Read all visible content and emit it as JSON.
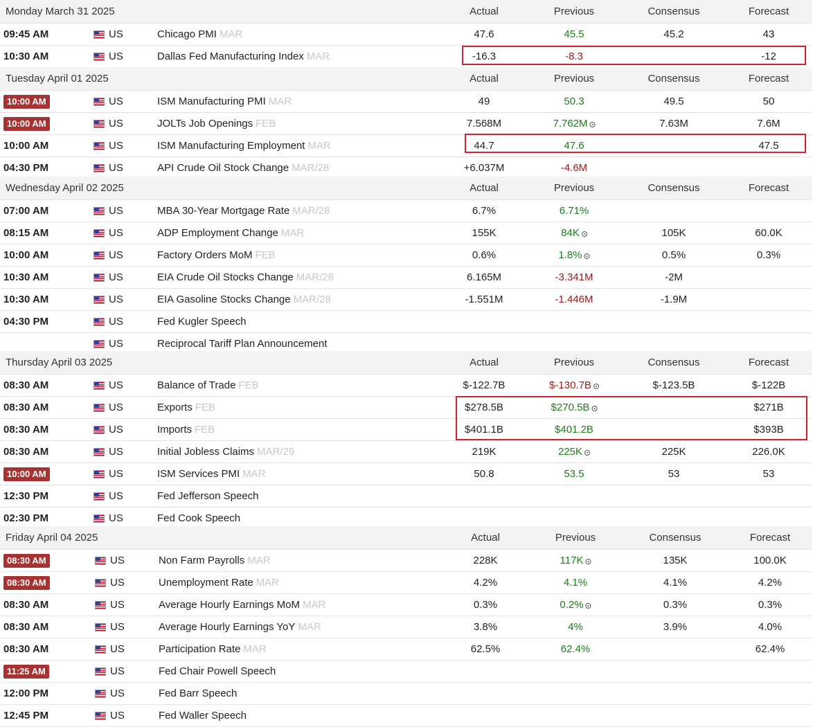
{
  "columns": {
    "actual": "Actual",
    "previous": "Previous",
    "consensus": "Consensus",
    "forecast": "Forecast"
  },
  "days": [
    {
      "date": "Monday March 31 2025",
      "events": [
        {
          "time": "09:45 AM",
          "highlight_time": false,
          "country": "US",
          "event": "Chicago PMI",
          "period": "MAR",
          "actual": "47.6",
          "previous": "45.5",
          "previous_color": "green",
          "revised": false,
          "consensus": "45.2",
          "forecast": "43"
        },
        {
          "time": "10:30 AM",
          "highlight_time": false,
          "country": "US",
          "event": "Dallas Fed Manufacturing Index",
          "period": "MAR",
          "actual": "-16.3",
          "previous": "-8.3",
          "previous_color": "red",
          "revised": false,
          "consensus": "",
          "forecast": "-12"
        }
      ]
    },
    {
      "date": "Tuesday April 01 2025",
      "events": [
        {
          "time": "10:00 AM",
          "highlight_time": true,
          "country": "US",
          "event": "ISM Manufacturing PMI",
          "period": "MAR",
          "actual": "49",
          "previous": "50.3",
          "previous_color": "green",
          "revised": false,
          "consensus": "49.5",
          "forecast": "50"
        },
        {
          "time": "10:00 AM",
          "highlight_time": true,
          "country": "US",
          "event": "JOLTs Job Openings",
          "period": "FEB",
          "actual": "7.568M",
          "previous": "7.762M",
          "previous_color": "green",
          "revised": true,
          "consensus": "7.63M",
          "forecast": "7.6M"
        },
        {
          "time": "10:00 AM",
          "highlight_time": false,
          "country": "US",
          "event": "ISM Manufacturing Employment",
          "period": "MAR",
          "actual": "44.7",
          "previous": "47.6",
          "previous_color": "green",
          "revised": false,
          "consensus": "",
          "forecast": "47.5"
        },
        {
          "time": "04:30 PM",
          "highlight_time": false,
          "country": "US",
          "event": "API Crude Oil Stock Change",
          "period": "MAR/28",
          "actual": "+6.037M",
          "previous": "-4.6M",
          "previous_color": "red",
          "revised": false,
          "consensus": "",
          "forecast": ""
        }
      ]
    },
    {
      "date": "Wednesday April 02 2025",
      "events": [
        {
          "time": "07:00 AM",
          "highlight_time": false,
          "country": "US",
          "event": "MBA 30-Year Mortgage Rate",
          "period": "MAR/28",
          "actual": "6.7%",
          "previous": "6.71%",
          "previous_color": "green",
          "revised": false,
          "consensus": "",
          "forecast": ""
        },
        {
          "time": "08:15 AM",
          "highlight_time": false,
          "country": "US",
          "event": "ADP Employment Change",
          "period": "MAR",
          "actual": "155K",
          "previous": "84K",
          "previous_color": "green",
          "revised": true,
          "consensus": "105K",
          "forecast": "60.0K"
        },
        {
          "time": "10:00 AM",
          "highlight_time": false,
          "country": "US",
          "event": "Factory Orders MoM",
          "period": "FEB",
          "actual": "0.6%",
          "previous": "1.8%",
          "previous_color": "green",
          "revised": true,
          "consensus": "0.5%",
          "forecast": "0.3%"
        },
        {
          "time": "10:30 AM",
          "highlight_time": false,
          "country": "US",
          "event": "EIA Crude Oil Stocks Change",
          "period": "MAR/28",
          "actual": "6.165M",
          "previous": "-3.341M",
          "previous_color": "red",
          "revised": false,
          "consensus": "-2M",
          "forecast": ""
        },
        {
          "time": "10:30 AM",
          "highlight_time": false,
          "country": "US",
          "event": "EIA Gasoline Stocks Change",
          "period": "MAR/28",
          "actual": "-1.551M",
          "previous": "-1.446M",
          "previous_color": "red",
          "revised": false,
          "consensus": "-1.9M",
          "forecast": ""
        },
        {
          "time": "04:30 PM",
          "highlight_time": false,
          "country": "US",
          "event": "Fed Kugler Speech",
          "period": "",
          "actual": "",
          "previous": "",
          "previous_color": "",
          "revised": false,
          "consensus": "",
          "forecast": ""
        },
        {
          "time": "",
          "highlight_time": false,
          "country": "US",
          "event": "Reciprocal Tariff Plan Announcement",
          "period": "",
          "actual": "",
          "previous": "",
          "previous_color": "",
          "revised": false,
          "consensus": "",
          "forecast": ""
        }
      ]
    },
    {
      "date": "Thursday April 03 2025",
      "events": [
        {
          "time": "08:30 AM",
          "highlight_time": false,
          "country": "US",
          "event": "Balance of Trade",
          "period": "FEB",
          "actual": "$-122.7B",
          "previous": "$-130.7B",
          "previous_color": "red",
          "revised": true,
          "consensus": "$-123.5B",
          "forecast": "$-122B"
        },
        {
          "time": "08:30 AM",
          "highlight_time": false,
          "country": "US",
          "event": "Exports",
          "period": "FEB",
          "actual": "$278.5B",
          "previous": "$270.5B",
          "previous_color": "green",
          "revised": true,
          "consensus": "",
          "forecast": "$271B"
        },
        {
          "time": "08:30 AM",
          "highlight_time": false,
          "country": "US",
          "event": "Imports",
          "period": "FEB",
          "actual": "$401.1B",
          "previous": "$401.2B",
          "previous_color": "green",
          "revised": false,
          "consensus": "",
          "forecast": "$393B"
        },
        {
          "time": "08:30 AM",
          "highlight_time": false,
          "country": "US",
          "event": "Initial Jobless Claims",
          "period": "MAR/29",
          "actual": "219K",
          "previous": "225K",
          "previous_color": "green",
          "revised": true,
          "consensus": "225K",
          "forecast": "226.0K"
        },
        {
          "time": "10:00 AM",
          "highlight_time": true,
          "country": "US",
          "event": "ISM Services PMI",
          "period": "MAR",
          "actual": "50.8",
          "previous": "53.5",
          "previous_color": "green",
          "revised": false,
          "consensus": "53",
          "forecast": "53"
        },
        {
          "time": "12:30 PM",
          "highlight_time": false,
          "country": "US",
          "event": "Fed Jefferson Speech",
          "period": "",
          "actual": "",
          "previous": "",
          "previous_color": "",
          "revised": false,
          "consensus": "",
          "forecast": ""
        },
        {
          "time": "02:30 PM",
          "highlight_time": false,
          "country": "US",
          "event": "Fed Cook Speech",
          "period": "",
          "actual": "",
          "previous": "",
          "previous_color": "",
          "revised": false,
          "consensus": "",
          "forecast": ""
        }
      ]
    },
    {
      "date": "Friday April 04 2025",
      "events": [
        {
          "time": "08:30 AM",
          "highlight_time": true,
          "country": "US",
          "event": "Non Farm Payrolls",
          "period": "MAR",
          "actual": "228K",
          "previous": "117K",
          "previous_color": "green",
          "revised": true,
          "consensus": "135K",
          "forecast": "100.0K"
        },
        {
          "time": "08:30 AM",
          "highlight_time": true,
          "country": "US",
          "event": "Unemployment Rate",
          "period": "MAR",
          "actual": "4.2%",
          "previous": "4.1%",
          "previous_color": "green",
          "revised": false,
          "consensus": "4.1%",
          "forecast": "4.2%"
        },
        {
          "time": "08:30 AM",
          "highlight_time": false,
          "country": "US",
          "event": "Average Hourly Earnings MoM",
          "period": "MAR",
          "actual": "0.3%",
          "previous": "0.2%",
          "previous_color": "green",
          "revised": true,
          "consensus": "0.3%",
          "forecast": "0.3%"
        },
        {
          "time": "08:30 AM",
          "highlight_time": false,
          "country": "US",
          "event": "Average Hourly Earnings YoY",
          "period": "MAR",
          "actual": "3.8%",
          "previous": "4%",
          "previous_color": "green",
          "revised": false,
          "consensus": "3.9%",
          "forecast": "4.0%"
        },
        {
          "time": "08:30 AM",
          "highlight_time": false,
          "country": "US",
          "event": "Participation Rate",
          "period": "MAR",
          "actual": "62.5%",
          "previous": "62.4%",
          "previous_color": "green",
          "revised": false,
          "consensus": "",
          "forecast": "62.4%"
        },
        {
          "time": "11:25 AM",
          "highlight_time": true,
          "country": "US",
          "event": "Fed Chair Powell Speech",
          "period": "",
          "actual": "",
          "previous": "",
          "previous_color": "",
          "revised": false,
          "consensus": "",
          "forecast": ""
        },
        {
          "time": "12:00 PM",
          "highlight_time": false,
          "country": "US",
          "event": "Fed Barr Speech",
          "period": "",
          "actual": "",
          "previous": "",
          "previous_color": "",
          "revised": false,
          "consensus": "",
          "forecast": ""
        },
        {
          "time": "12:45 PM",
          "highlight_time": false,
          "country": "US",
          "event": "Fed Waller Speech",
          "period": "",
          "actual": "",
          "previous": "",
          "previous_color": "",
          "revised": false,
          "consensus": "",
          "forecast": ""
        }
      ]
    }
  ]
}
